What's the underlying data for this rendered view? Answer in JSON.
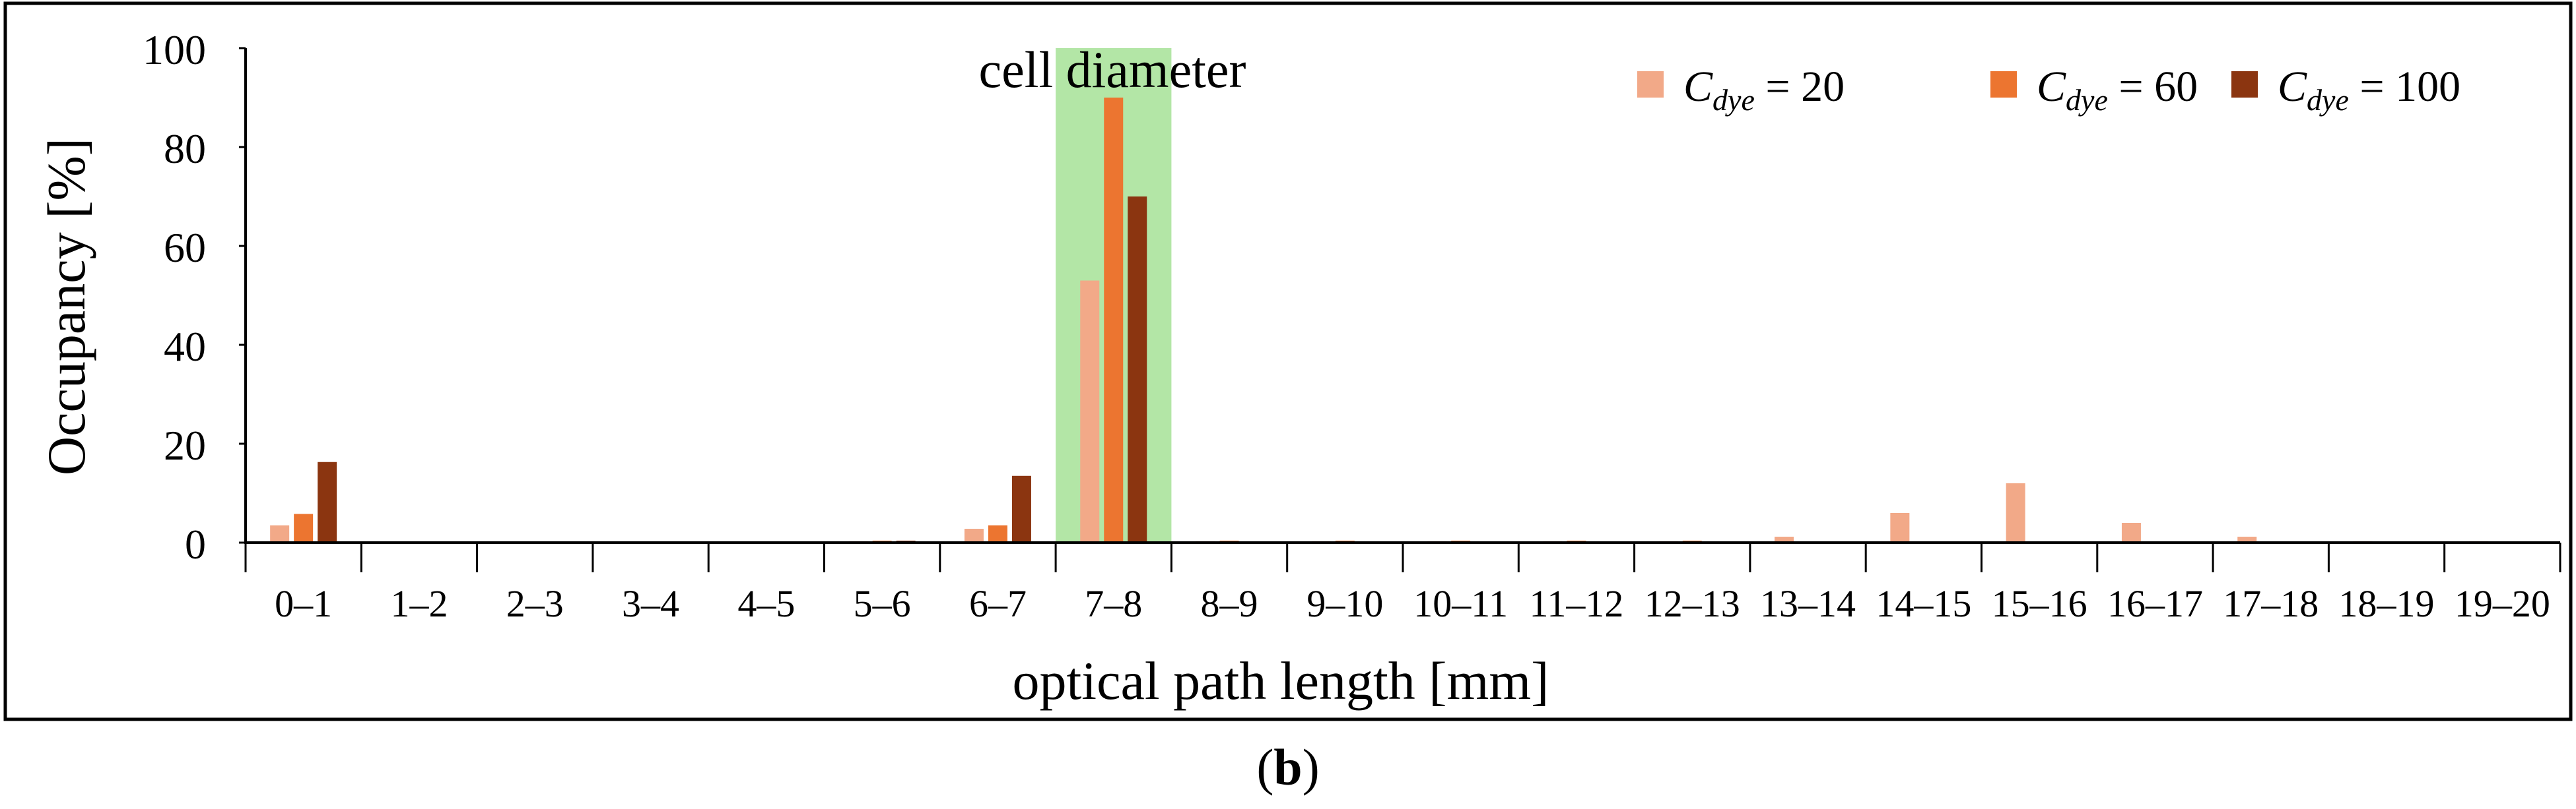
{
  "chart_data": {
    "type": "bar",
    "xlabel": "optical path length [mm]",
    "ylabel": "Occupancy [%]",
    "ylim": [
      0,
      100
    ],
    "yticks": [
      0,
      20,
      40,
      60,
      80,
      100
    ],
    "grid": false,
    "legend_position": "top-right",
    "categories": [
      "0–1",
      "1–2",
      "2–3",
      "3–4",
      "4–5",
      "5–6",
      "6–7",
      "7–8",
      "8–9",
      "9–10",
      "10–11",
      "11–12",
      "12–13",
      "13–14",
      "14–15",
      "15–16",
      "16–17",
      "17–18",
      "18–19",
      "19–20"
    ],
    "series": [
      {
        "name": "C_dye = 20",
        "legend_main": "C",
        "legend_sub": "dye",
        "legend_value": " = 20",
        "color": "#F2A988",
        "values": [
          3.5,
          0,
          0,
          0,
          0,
          0.3,
          2.8,
          53,
          0.3,
          0.3,
          0.3,
          0.3,
          0.3,
          1.2,
          6,
          12,
          4,
          1.2,
          0.3,
          0.3
        ]
      },
      {
        "name": "C_dye = 60",
        "legend_main": "C",
        "legend_sub": "dye",
        "legend_value": " = 60",
        "color": "#EC7530",
        "values": [
          5.8,
          0,
          0,
          0,
          0,
          0.4,
          3.5,
          90,
          0.4,
          0.4,
          0.4,
          0.4,
          0.4,
          0,
          0,
          0,
          0,
          0,
          0,
          0
        ]
      },
      {
        "name": "C_dye = 100",
        "legend_main": "C",
        "legend_sub": "dye",
        "legend_value": " = 100",
        "color": "#8B3510",
        "values": [
          16.3,
          0,
          0,
          0,
          0,
          0.4,
          13.5,
          70,
          0,
          0,
          0,
          0,
          0,
          0,
          0,
          0,
          0,
          0,
          0,
          0
        ]
      }
    ],
    "highlight": {
      "category": "7–8",
      "label": "cell diameter",
      "color": "#B3E6A6"
    }
  },
  "panel_label": {
    "open": "(",
    "letter": "b",
    "close": ")"
  }
}
